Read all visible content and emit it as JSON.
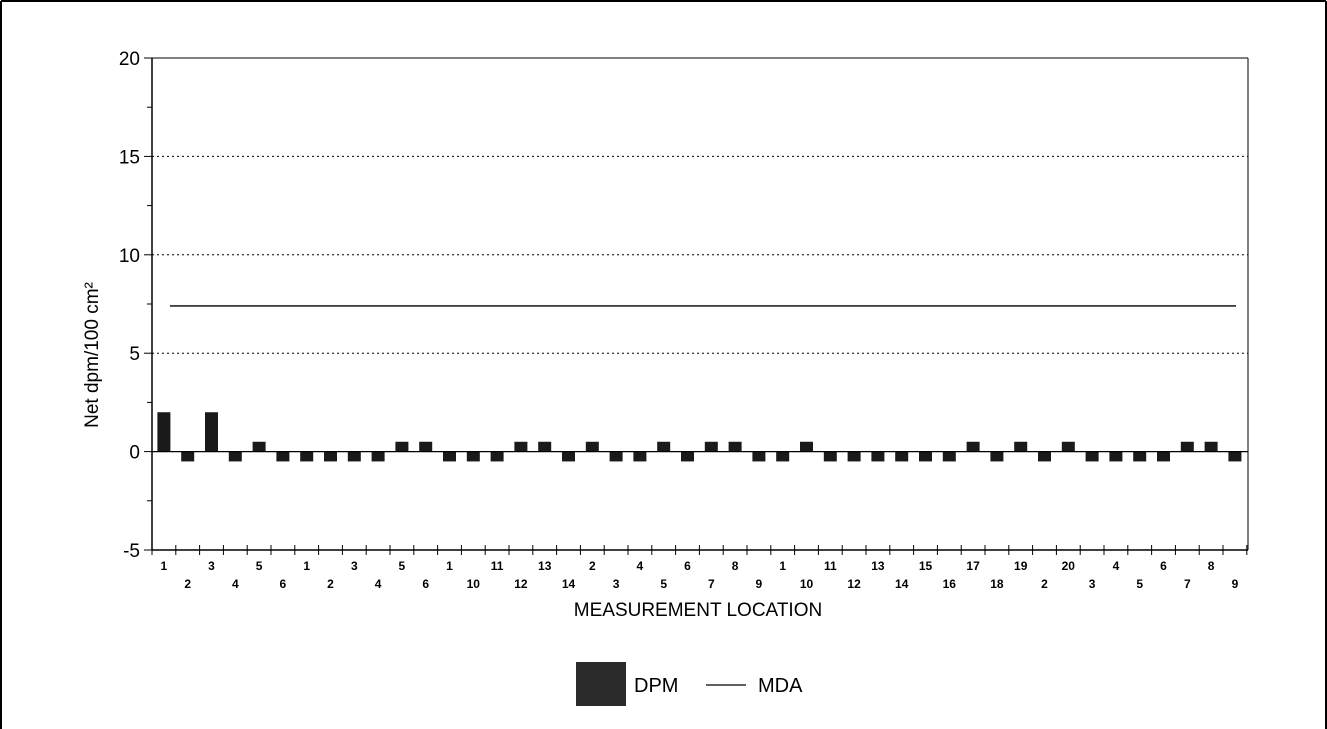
{
  "chart_data": {
    "type": "bar",
    "title": "",
    "xlabel": "MEASUREMENT LOCATION",
    "ylabel": "Net dpm/100 cm²",
    "ylim": [
      -5,
      20
    ],
    "yticks": [
      -5,
      0,
      5,
      10,
      15,
      20
    ],
    "grid": true,
    "legend_position": "bottom",
    "categories": [
      "1",
      "2",
      "3",
      "4",
      "5",
      "6",
      "1",
      "2",
      "3",
      "4",
      "5",
      "6",
      "1",
      "10",
      "11",
      "12",
      "13",
      "14",
      "2",
      "3",
      "4",
      "5",
      "6",
      "7",
      "8",
      "9",
      "1",
      "10",
      "11",
      "12",
      "13",
      "14",
      "15",
      "16",
      "17",
      "18",
      "19",
      "2",
      "20",
      "3",
      "4",
      "5",
      "6",
      "7",
      "8",
      "9"
    ],
    "series": [
      {
        "name": "DPM",
        "type": "bar",
        "color": "#1a1a1a",
        "values": [
          2,
          -0.5,
          2,
          -0.5,
          0.5,
          -0.5,
          -0.5,
          -0.5,
          -0.5,
          -0.5,
          0.5,
          0.5,
          -0.5,
          -0.5,
          -0.5,
          0.5,
          0.5,
          -0.5,
          0.5,
          -0.5,
          -0.5,
          0.5,
          -0.5,
          0.5,
          0.5,
          -0.5,
          -0.5,
          0.5,
          -0.5,
          -0.5,
          -0.5,
          -0.5,
          -0.5,
          -0.5,
          0.5,
          -0.5,
          0.5,
          -0.5,
          0.5,
          -0.5,
          -0.5,
          -0.5,
          -0.5,
          0.5,
          0.5,
          -0.5
        ]
      },
      {
        "name": "MDA",
        "type": "line",
        "color": "#000000",
        "value": 7.4
      }
    ]
  }
}
